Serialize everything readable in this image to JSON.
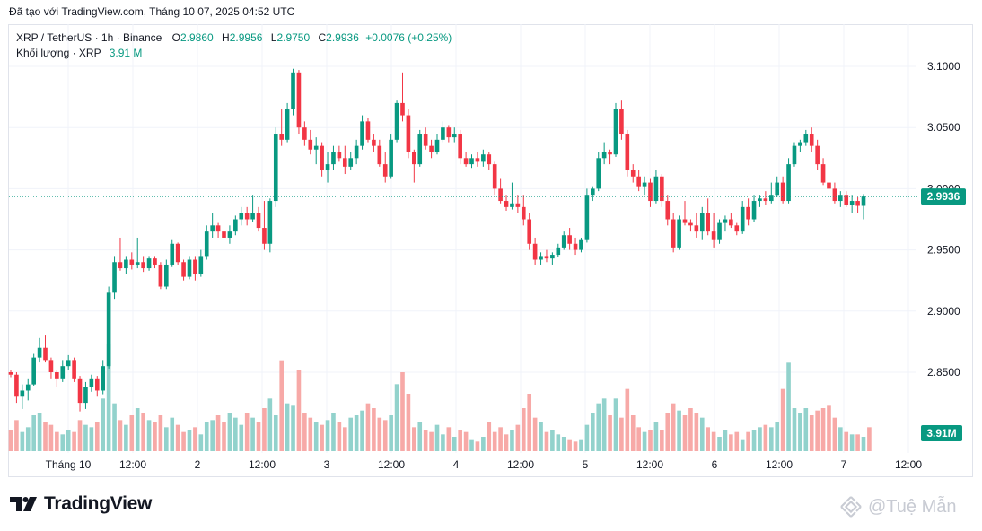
{
  "header": {
    "created_text": "Đã tạo với TradingView.com, Tháng 10 07, 2025 04:52 UTC"
  },
  "legend": {
    "symbol": "XRP / TetherUS · 1h · Binance",
    "o_label": "O",
    "o_value": "2.9860",
    "h_label": "H",
    "h_value": "2.9956",
    "l_label": "L",
    "l_value": "2.9750",
    "c_label": "C",
    "c_value": "2.9936",
    "change": "+0.0076 (+0.25%)",
    "volume_label": "Khối lượng · XRP",
    "volume_value": "3.91 M"
  },
  "price_badge": "2.9936",
  "volume_badge": "3.91M",
  "footer": {
    "logo_text": "TradingView",
    "watermark": "@Tuệ Mẫn"
  },
  "colors": {
    "up": "#089981",
    "down": "#f23645",
    "up_vol": "#92d2cc",
    "down_vol": "#f7a9a7",
    "grid": "#f0f3fa"
  },
  "chart_data": {
    "type": "candlestick",
    "interval": "1h",
    "y_axis": {
      "ticks": [
        "3.1000",
        "3.0500",
        "3.0000",
        "2.9500",
        "2.9000",
        "2.8500"
      ],
      "range": [
        2.8,
        3.12
      ]
    },
    "x_axis": {
      "ticks": [
        "Tháng 10",
        "12:00",
        "2",
        "12:00",
        "3",
        "12:00",
        "4",
        "12:00",
        "5",
        "12:00",
        "6",
        "12:00",
        "7",
        "12:00"
      ]
    },
    "current_price": 2.9936,
    "volume_last": "3.91M",
    "candles": [
      [
        2.85,
        2.852,
        2.846,
        2.848
      ],
      [
        2.848,
        2.85,
        2.825,
        2.83
      ],
      [
        2.83,
        2.84,
        2.82,
        2.835
      ],
      [
        2.835,
        2.845,
        2.827,
        2.84
      ],
      [
        2.84,
        2.865,
        2.839,
        2.862
      ],
      [
        2.862,
        2.878,
        2.858,
        2.87
      ],
      [
        2.87,
        2.88,
        2.858,
        2.86
      ],
      [
        2.86,
        2.862,
        2.845,
        2.85
      ],
      [
        2.85,
        2.852,
        2.838,
        2.845
      ],
      [
        2.845,
        2.86,
        2.842,
        2.855
      ],
      [
        2.855,
        2.864,
        2.852,
        2.86
      ],
      [
        2.86,
        2.862,
        2.842,
        2.845
      ],
      [
        2.845,
        2.847,
        2.818,
        2.825
      ],
      [
        2.825,
        2.842,
        2.82,
        2.838
      ],
      [
        2.838,
        2.848,
        2.834,
        2.845
      ],
      [
        2.845,
        2.847,
        2.83,
        2.835
      ],
      [
        2.835,
        2.86,
        2.832,
        2.855
      ],
      [
        2.855,
        2.92,
        2.853,
        2.915
      ],
      [
        2.915,
        2.945,
        2.91,
        2.94
      ],
      [
        2.94,
        2.96,
        2.933,
        2.935
      ],
      [
        2.935,
        2.945,
        2.93,
        2.942
      ],
      [
        2.942,
        2.948,
        2.934,
        2.938
      ],
      [
        2.938,
        2.96,
        2.935,
        2.94
      ],
      [
        2.94,
        2.945,
        2.932,
        2.935
      ],
      [
        2.935,
        2.945,
        2.933,
        2.943
      ],
      [
        2.943,
        2.945,
        2.935,
        2.938
      ],
      [
        2.938,
        2.94,
        2.918,
        2.92
      ],
      [
        2.92,
        2.942,
        2.918,
        2.938
      ],
      [
        2.938,
        2.958,
        2.936,
        2.955
      ],
      [
        2.955,
        2.956,
        2.938,
        2.94
      ],
      [
        2.94,
        2.942,
        2.925,
        2.928
      ],
      [
        2.928,
        2.945,
        2.926,
        2.942
      ],
      [
        2.942,
        2.945,
        2.925,
        2.93
      ],
      [
        2.93,
        2.95,
        2.928,
        2.945
      ],
      [
        2.945,
        2.97,
        2.942,
        2.965
      ],
      [
        2.965,
        2.98,
        2.96,
        2.97
      ],
      [
        2.97,
        2.972,
        2.96,
        2.965
      ],
      [
        2.965,
        2.972,
        2.958,
        2.96
      ],
      [
        2.96,
        2.97,
        2.955,
        2.965
      ],
      [
        2.965,
        2.978,
        2.962,
        2.975
      ],
      [
        2.975,
        2.985,
        2.97,
        2.98
      ],
      [
        2.98,
        2.985,
        2.97,
        2.975
      ],
      [
        2.975,
        2.995,
        2.973,
        2.98
      ],
      [
        2.98,
        2.985,
        2.965,
        2.968
      ],
      [
        2.968,
        2.99,
        2.95,
        2.955
      ],
      [
        2.955,
        2.992,
        2.948,
        2.99
      ],
      [
        2.99,
        3.05,
        2.985,
        3.045
      ],
      [
        3.045,
        3.065,
        3.035,
        3.04
      ],
      [
        3.04,
        3.07,
        3.038,
        3.065
      ],
      [
        3.065,
        3.098,
        3.06,
        3.095
      ],
      [
        3.095,
        3.097,
        3.045,
        3.05
      ],
      [
        3.05,
        3.055,
        3.035,
        3.04
      ],
      [
        3.04,
        3.048,
        3.028,
        3.032
      ],
      [
        3.032,
        3.042,
        3.02,
        3.035
      ],
      [
        3.035,
        3.038,
        3.01,
        3.015
      ],
      [
        3.015,
        3.03,
        3.005,
        3.02
      ],
      [
        3.02,
        3.035,
        3.015,
        3.03
      ],
      [
        3.03,
        3.035,
        3.022,
        3.025
      ],
      [
        3.025,
        3.035,
        3.012,
        3.018
      ],
      [
        3.018,
        3.03,
        3.015,
        3.025
      ],
      [
        3.025,
        3.04,
        3.02,
        3.035
      ],
      [
        3.035,
        3.06,
        3.032,
        3.055
      ],
      [
        3.055,
        3.058,
        3.038,
        3.04
      ],
      [
        3.04,
        3.045,
        3.03,
        3.035
      ],
      [
        3.035,
        3.04,
        3.018,
        3.02
      ],
      [
        3.02,
        3.03,
        3.005,
        3.01
      ],
      [
        3.01,
        3.045,
        3.008,
        3.04
      ],
      [
        3.04,
        3.072,
        3.038,
        3.07
      ],
      [
        3.07,
        3.095,
        3.055,
        3.06
      ],
      [
        3.06,
        3.065,
        3.025,
        3.03
      ],
      [
        3.03,
        3.032,
        3.005,
        3.02
      ],
      [
        3.02,
        3.048,
        3.018,
        3.045
      ],
      [
        3.045,
        3.05,
        3.032,
        3.035
      ],
      [
        3.035,
        3.04,
        3.025,
        3.03
      ],
      [
        3.03,
        3.045,
        3.028,
        3.04
      ],
      [
        3.04,
        3.055,
        3.038,
        3.05
      ],
      [
        3.05,
        3.052,
        3.038,
        3.042
      ],
      [
        3.042,
        3.05,
        3.038,
        3.045
      ],
      [
        3.045,
        3.048,
        3.02,
        3.025
      ],
      [
        3.025,
        3.03,
        3.018,
        3.02
      ],
      [
        3.02,
        3.028,
        3.017,
        3.025
      ],
      [
        3.025,
        3.03,
        3.018,
        3.022
      ],
      [
        3.022,
        3.032,
        3.018,
        3.028
      ],
      [
        3.028,
        3.03,
        3.015,
        3.02
      ],
      [
        3.02,
        3.022,
        2.995,
        3.0
      ],
      [
        3.0,
        3.008,
        2.988,
        2.99
      ],
      [
        2.99,
        2.995,
        2.982,
        2.985
      ],
      [
        2.985,
        3.005,
        2.983,
        2.988
      ],
      [
        2.988,
        2.995,
        2.98,
        2.985
      ],
      [
        2.985,
        2.995,
        2.97,
        2.975
      ],
      [
        2.975,
        2.98,
        2.95,
        2.955
      ],
      [
        2.955,
        2.96,
        2.938,
        2.942
      ],
      [
        2.942,
        2.948,
        2.938,
        2.945
      ],
      [
        2.945,
        2.95,
        2.94,
        2.943
      ],
      [
        2.943,
        2.948,
        2.938,
        2.946
      ],
      [
        2.946,
        2.955,
        2.944,
        2.952
      ],
      [
        2.952,
        2.965,
        2.95,
        2.962
      ],
      [
        2.962,
        2.968,
        2.95,
        2.955
      ],
      [
        2.955,
        2.96,
        2.946,
        2.95
      ],
      [
        2.95,
        2.96,
        2.948,
        2.958
      ],
      [
        2.958,
        3.0,
        2.956,
        2.995
      ],
      [
        2.995,
        3.002,
        2.99,
        3.0
      ],
      [
        3.0,
        3.03,
        2.998,
        3.025
      ],
      [
        3.025,
        3.038,
        3.02,
        3.03
      ],
      [
        3.03,
        3.032,
        3.02,
        3.028
      ],
      [
        3.028,
        3.07,
        3.026,
        3.065
      ],
      [
        3.065,
        3.072,
        3.04,
        3.045
      ],
      [
        3.045,
        3.048,
        3.01,
        3.015
      ],
      [
        3.015,
        3.02,
        3.005,
        3.01
      ],
      [
        3.01,
        3.015,
        2.998,
        3.002
      ],
      [
        3.002,
        3.01,
        2.995,
        3.005
      ],
      [
        3.005,
        3.008,
        2.985,
        2.99
      ],
      [
        2.99,
        3.015,
        2.988,
        3.01
      ],
      [
        3.01,
        3.012,
        2.985,
        2.99
      ],
      [
        2.99,
        2.995,
        2.97,
        2.975
      ],
      [
        2.975,
        2.98,
        2.948,
        2.952
      ],
      [
        2.952,
        2.978,
        2.95,
        2.975
      ],
      [
        2.975,
        2.99,
        2.97,
        2.972
      ],
      [
        2.972,
        2.975,
        2.965,
        2.97
      ],
      [
        2.97,
        2.98,
        2.96,
        2.965
      ],
      [
        2.965,
        2.985,
        2.958,
        2.98
      ],
      [
        2.98,
        2.992,
        2.962,
        2.965
      ],
      [
        2.965,
        2.98,
        2.952,
        2.958
      ],
      [
        2.958,
        2.975,
        2.955,
        2.972
      ],
      [
        2.972,
        2.978,
        2.965,
        2.975
      ],
      [
        2.975,
        2.98,
        2.968,
        2.97
      ],
      [
        2.97,
        2.972,
        2.962,
        2.965
      ],
      [
        2.965,
        2.99,
        2.963,
        2.985
      ],
      [
        2.985,
        2.992,
        2.97,
        2.975
      ],
      [
        2.975,
        2.995,
        2.973,
        2.99
      ],
      [
        2.99,
        2.995,
        2.985,
        2.992
      ],
      [
        2.992,
        2.998,
        2.987,
        2.99
      ],
      [
        2.99,
        3.005,
        2.988,
        2.995
      ],
      [
        2.995,
        3.01,
        2.993,
        3.005
      ],
      [
        3.005,
        3.01,
        2.988,
        2.99
      ],
      [
        2.99,
        3.025,
        2.988,
        3.02
      ],
      [
        3.02,
        3.038,
        3.018,
        3.035
      ],
      [
        3.035,
        3.04,
        3.03,
        3.038
      ],
      [
        3.038,
        3.048,
        3.035,
        3.045
      ],
      [
        3.045,
        3.05,
        3.03,
        3.035
      ],
      [
        3.035,
        3.04,
        3.015,
        3.02
      ],
      [
        3.02,
        3.025,
        3.003,
        3.005
      ],
      [
        3.005,
        3.01,
        2.995,
        3.0
      ],
      [
        3.0,
        3.005,
        2.988,
        2.99
      ],
      [
        2.99,
        2.998,
        2.985,
        2.995
      ],
      [
        2.995,
        2.998,
        2.985,
        2.987
      ],
      [
        2.987,
        2.995,
        2.98,
        2.99
      ],
      [
        2.99,
        2.993,
        2.98,
        2.986
      ],
      [
        2.986,
        2.9956,
        2.975,
        2.9936
      ]
    ],
    "volumes": [
      0.9,
      1.3,
      0.8,
      1.0,
      1.5,
      1.6,
      1.2,
      1.1,
      0.8,
      0.7,
      0.9,
      0.8,
      1.3,
      1.1,
      1.0,
      1.2,
      2.2,
      4.5,
      2.0,
      1.3,
      1.1,
      1.5,
      1.8,
      1.6,
      1.3,
      1.2,
      1.5,
      1.0,
      1.4,
      1.1,
      0.8,
      0.9,
      1.0,
      0.7,
      1.2,
      1.3,
      1.5,
      1.2,
      1.6,
      1.4,
      1.1,
      1.6,
      1.4,
      1.2,
      1.8,
      2.2,
      1.5,
      3.8,
      2.0,
      1.9,
      3.4,
      1.6,
      1.4,
      1.2,
      1.1,
      1.3,
      1.6,
      1.2,
      1.0,
      1.4,
      1.5,
      1.7,
      2.0,
      1.8,
      1.4,
      1.3,
      1.5,
      2.8,
      3.3,
      2.4,
      1.0,
      1.2,
      0.9,
      0.8,
      1.1,
      0.7,
      1.0,
      0.6,
      0.9,
      0.8,
      0.5,
      0.4,
      0.6,
      1.2,
      0.8,
      1.0,
      0.7,
      0.9,
      1.1,
      1.8,
      2.4,
      1.4,
      1.2,
      0.8,
      0.9,
      0.7,
      0.6,
      0.5,
      0.4,
      0.5,
      1.1,
      1.6,
      2.0,
      2.2,
      1.5,
      2.2,
      1.4,
      2.6,
      1.5,
      1.0,
      0.8,
      0.9,
      1.2,
      0.9,
      1.6,
      2.0,
      1.7,
      1.5,
      1.8,
      1.6,
      1.4,
      1.0,
      0.8,
      0.6,
      0.9,
      0.7,
      0.8,
      0.5,
      0.8,
      0.9,
      1.0,
      1.1,
      1.0,
      1.2,
      2.6,
      3.7,
      1.8,
      1.6,
      1.8,
      1.5,
      1.7,
      1.8,
      1.9,
      1.4,
      1.0,
      0.8,
      0.7,
      0.7,
      0.6,
      1.0
    ]
  }
}
